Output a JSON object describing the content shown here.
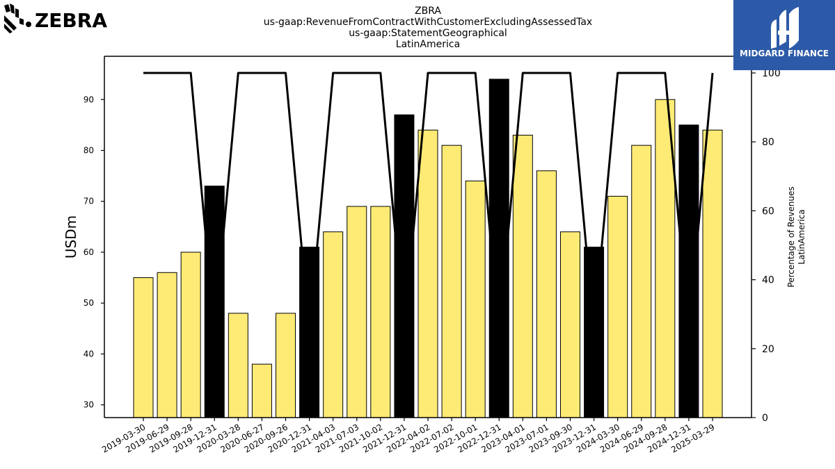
{
  "company_logo": {
    "text": "ZEBRA"
  },
  "watermark": {
    "text": "MIDGARD FINANCE",
    "bg_color": "#2d5aa8"
  },
  "chart_data": {
    "type": "bar",
    "title_lines": [
      "ZBRA",
      "us-gaap:RevenueFromContractWithCustomerExcludingAssessedTax",
      "us-gaap:StatementGeographical",
      "LatinAmerica"
    ],
    "ylabel": "USDm",
    "ylabel_right": [
      "Percentage of Revenues",
      "LatinAmerica"
    ],
    "ylim": [
      27.5,
      98.5
    ],
    "ylim_right": [
      0,
      100
    ],
    "yticks": [
      30,
      40,
      50,
      60,
      70,
      80,
      90
    ],
    "yticks_right": [
      0,
      20,
      40,
      60,
      80,
      100
    ],
    "categories": [
      "2019-03-30",
      "2019-06-29",
      "2019-09-28",
      "2019-12-31",
      "2020-03-28",
      "2020-06-27",
      "2020-09-26",
      "2020-12-31",
      "2021-04-03",
      "2021-07-03",
      "2021-10-02",
      "2021-12-31",
      "2022-04-02",
      "2022-07-02",
      "2022-10-01",
      "2022-12-31",
      "2023-04-01",
      "2023-07-01",
      "2023-09-30",
      "2023-12-31",
      "2024-03-30",
      "2024-06-29",
      "2024-09-28",
      "2024-12-31",
      "2025-03-29"
    ],
    "values": [
      55,
      56,
      60,
      73,
      48,
      38,
      48,
      61,
      64,
      69,
      69,
      87,
      84,
      81,
      74,
      94,
      83,
      76,
      64,
      61,
      71,
      81,
      90,
      85,
      84
    ],
    "bar_kind": [
      "quarter",
      "quarter",
      "quarter",
      "annual",
      "quarter",
      "quarter",
      "quarter",
      "annual",
      "quarter",
      "quarter",
      "quarter",
      "annual",
      "quarter",
      "quarter",
      "quarter",
      "annual",
      "quarter",
      "quarter",
      "quarter",
      "annual",
      "quarter",
      "quarter",
      "quarter",
      "annual",
      "quarter"
    ],
    "percentage_line": [
      100,
      100,
      100,
      25,
      100,
      100,
      100,
      25,
      100,
      100,
      100,
      25,
      100,
      100,
      100,
      25,
      100,
      100,
      100,
      25,
      100,
      100,
      100,
      25,
      100
    ],
    "colors": {
      "quarter": "#feeb75",
      "annual": "#000000",
      "line": "#000000",
      "edge": "#000000"
    }
  }
}
